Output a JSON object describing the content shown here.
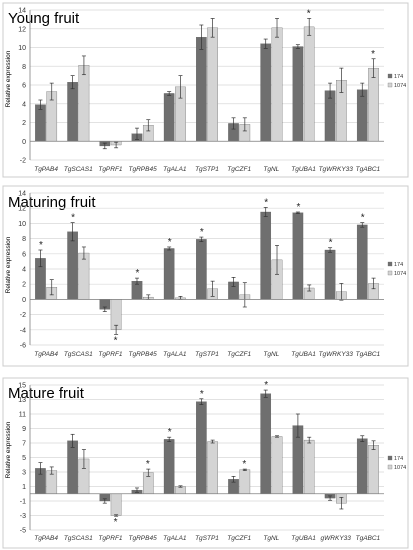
{
  "colors": {
    "series_174": "#6f6f6f",
    "series_1074": "#d4d4d4",
    "grid": "#d9d9d9",
    "frame": "#cccccc",
    "axis": "#808080",
    "text": "#333333"
  },
  "chart_data": [
    {
      "type": "bar",
      "title": "Young fruit",
      "ylabel": "Relative expression",
      "ylim": [
        -2,
        14
      ],
      "yticks": [
        -2,
        0,
        2,
        4,
        6,
        8,
        10,
        12,
        14
      ],
      "grid": true,
      "legend_position": "right",
      "categories": [
        "TgPAB4",
        "TgSCAS1",
        "TgPRF1",
        "TgRPB45",
        "TgALA1",
        "TgSTP1",
        "TgCZF1",
        "TgNL",
        "TgUBA1",
        "TgWRKY33",
        "TgABC1"
      ],
      "series": [
        {
          "name": "174",
          "values": [
            3.9,
            6.3,
            -0.5,
            0.8,
            5.1,
            11.1,
            1.9,
            10.4,
            10.1,
            5.4,
            5.5
          ],
          "errors": [
            0.5,
            0.7,
            0.3,
            0.6,
            0.2,
            1.3,
            0.6,
            0.5,
            0.2,
            0.8,
            0.7
          ]
        },
        {
          "name": "1074",
          "values": [
            5.3,
            8.1,
            -0.4,
            1.7,
            5.8,
            12.1,
            1.8,
            12.1,
            12.2,
            6.5,
            7.8
          ],
          "errors": [
            0.9,
            1.0,
            0.3,
            0.6,
            1.2,
            1.0,
            0.7,
            1.0,
            0.9,
            1.3,
            1.0
          ]
        }
      ],
      "significance": [
        "",
        "",
        "",
        "",
        "",
        "",
        "",
        "",
        "*",
        "",
        "*"
      ]
    },
    {
      "type": "bar",
      "title": "Maturing fruit",
      "ylabel": "Relative expression",
      "ylim": [
        -6,
        14
      ],
      "yticks": [
        -6,
        -4,
        -2,
        0,
        2,
        4,
        6,
        8,
        10,
        12,
        14
      ],
      "grid": true,
      "legend_position": "right",
      "categories": [
        "TgPAB4",
        "TgSCAS1",
        "TgPRF1",
        "TgRPB45",
        "TgALA1",
        "TgSTP1",
        "TgCZF1",
        "TgNL",
        "TgUBA1",
        "TgWRKY33",
        "TgABC1"
      ],
      "series": [
        {
          "name": "174",
          "values": [
            5.4,
            8.9,
            -1.3,
            2.4,
            6.7,
            7.9,
            2.3,
            11.5,
            11.4,
            6.5,
            9.8
          ],
          "errors": [
            1.1,
            1.2,
            0.3,
            0.4,
            0.2,
            0.3,
            0.6,
            0.6,
            0.1,
            0.3,
            0.3
          ]
        },
        {
          "name": "1074",
          "values": [
            1.6,
            6.1,
            -4.0,
            0.3,
            0.2,
            1.4,
            0.6,
            5.2,
            1.5,
            1.0,
            2.1
          ],
          "errors": [
            1.0,
            0.8,
            0.6,
            0.3,
            0.2,
            1.0,
            1.6,
            1.9,
            0.4,
            1.1,
            0.7
          ]
        }
      ],
      "significance": [
        "*",
        "*",
        "*",
        "*",
        "*",
        "*",
        "",
        "*",
        "*",
        "*",
        "*"
      ]
    },
    {
      "type": "bar",
      "title": "Mature fruit",
      "ylabel": "Relative expression",
      "ylim": [
        -5,
        15
      ],
      "yticks": [
        -5,
        -3,
        -1,
        1,
        3,
        5,
        7,
        9,
        11,
        13,
        15
      ],
      "grid": true,
      "legend_position": "right",
      "categories": [
        "TgPAB4",
        "TgSCAS1",
        "TgPRF1",
        "TgRPB45",
        "TgALA1",
        "TgSTP1",
        "TgCZF1",
        "TgNL",
        "TgUBA1",
        "gWRKY33",
        "TgABC1"
      ],
      "series": [
        {
          "name": "174",
          "values": [
            3.5,
            7.3,
            -1.0,
            0.5,
            7.5,
            12.7,
            2.0,
            13.8,
            9.4,
            -0.6,
            7.6
          ],
          "errors": [
            0.8,
            0.9,
            0.3,
            0.3,
            0.3,
            0.4,
            0.4,
            0.5,
            1.6,
            0.3,
            0.4
          ]
        },
        {
          "name": "1074",
          "values": [
            3.2,
            4.8,
            -3.0,
            2.9,
            1.0,
            7.2,
            3.3,
            7.9,
            7.4,
            -1.3,
            6.7
          ],
          "errors": [
            0.5,
            1.3,
            0.1,
            0.5,
            0.1,
            0.2,
            0.1,
            0.1,
            0.4,
            0.8,
            0.6
          ]
        }
      ],
      "significance": [
        "",
        "",
        "*",
        "*",
        "*",
        "*",
        "*",
        "*",
        "",
        "",
        ""
      ]
    }
  ]
}
